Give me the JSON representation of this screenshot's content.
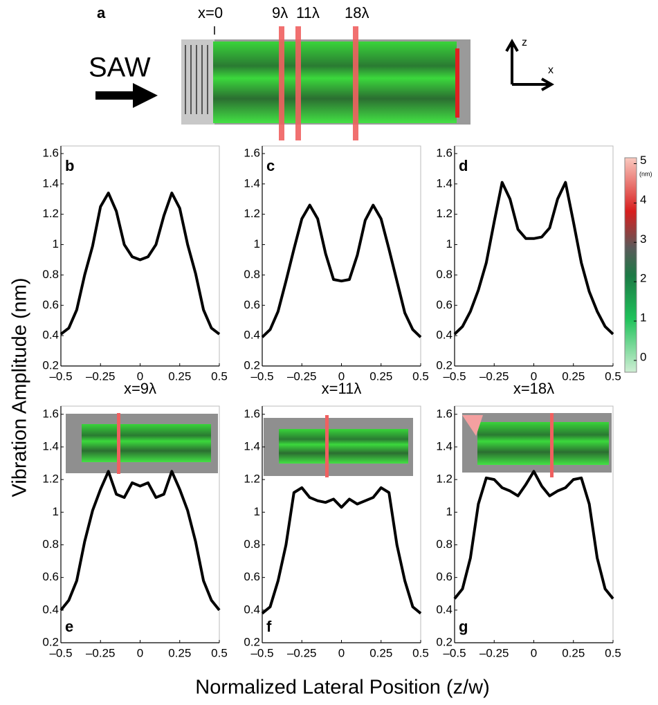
{
  "panel_a": {
    "label": "a",
    "position_label": "x=0",
    "markers": [
      "9λ",
      "11λ",
      "18λ"
    ],
    "arrow_label": "SAW",
    "axis_labels": [
      "z",
      "x"
    ]
  },
  "colorbar": {
    "ylim": [
      -0.3,
      5.15
    ],
    "yticks": [
      0,
      1,
      2,
      3,
      4,
      5
    ],
    "unit": "(nm)"
  },
  "figure": {
    "ylabel": "Vibration Amplitude (nm)",
    "xlabel": "Normalized Lateral Position (z/w)"
  },
  "chart_data": [
    {
      "type": "line",
      "label": "b",
      "color": "#000000",
      "x": [
        -0.5,
        -0.45,
        -0.4,
        -0.35,
        -0.3,
        -0.25,
        -0.2,
        -0.15,
        -0.1,
        -0.05,
        0,
        0.05,
        0.1,
        0.15,
        0.2,
        0.25,
        0.3,
        0.35,
        0.4,
        0.45,
        0.5
      ],
      "values": [
        0.41,
        0.45,
        0.57,
        0.8,
        0.99,
        1.25,
        1.34,
        1.22,
        1.0,
        0.92,
        0.9,
        0.92,
        1.0,
        1.19,
        1.34,
        1.24,
        1.0,
        0.81,
        0.57,
        0.45,
        0.41
      ],
      "xlim": [
        -0.5,
        0.5
      ],
      "ylim": [
        0.2,
        1.65
      ],
      "xticks": [
        {
          "value": -0.5,
          "label": "–0.5"
        },
        {
          "value": -0.25,
          "label": "–0.25"
        },
        0,
        0.25,
        0.5
      ],
      "yticks": [
        0.2,
        0.4,
        0.6,
        0.8,
        1,
        1.2,
        1.4,
        1.6
      ]
    },
    {
      "type": "line",
      "label": "c",
      "color": "#000000",
      "x": [
        -0.5,
        -0.45,
        -0.4,
        -0.35,
        -0.3,
        -0.25,
        -0.2,
        -0.15,
        -0.1,
        -0.05,
        0,
        0.05,
        0.1,
        0.15,
        0.2,
        0.25,
        0.3,
        0.35,
        0.4,
        0.45,
        0.5
      ],
      "values": [
        0.39,
        0.44,
        0.56,
        0.76,
        0.97,
        1.17,
        1.26,
        1.17,
        0.94,
        0.77,
        0.76,
        0.77,
        0.93,
        1.16,
        1.26,
        1.17,
        0.97,
        0.76,
        0.55,
        0.44,
        0.39
      ],
      "xlim": [
        -0.5,
        0.5
      ],
      "ylim": [
        0.2,
        1.65
      ],
      "xticks": [
        {
          "value": -0.5,
          "label": "–0.5"
        },
        {
          "value": -0.25,
          "label": "–0.25"
        },
        0,
        0.25,
        0.5
      ],
      "yticks": [
        0.2,
        0.4,
        0.6,
        0.8,
        1,
        1.2,
        1.4,
        1.6
      ]
    },
    {
      "type": "line",
      "label": "d",
      "color": "#000000",
      "x": [
        -0.5,
        -0.45,
        -0.4,
        -0.35,
        -0.3,
        -0.25,
        -0.2,
        -0.15,
        -0.1,
        -0.05,
        0,
        0.05,
        0.1,
        0.15,
        0.2,
        0.25,
        0.3,
        0.35,
        0.4,
        0.45,
        0.5
      ],
      "values": [
        0.41,
        0.46,
        0.56,
        0.7,
        0.88,
        1.15,
        1.41,
        1.3,
        1.1,
        1.04,
        1.04,
        1.05,
        1.11,
        1.3,
        1.41,
        1.15,
        0.88,
        0.69,
        0.56,
        0.46,
        0.41
      ],
      "xlim": [
        -0.5,
        0.5
      ],
      "ylim": [
        0.2,
        1.65
      ],
      "xticks": [
        {
          "value": -0.5,
          "label": "–0.5"
        },
        {
          "value": -0.25,
          "label": "–0.25"
        },
        0,
        0.25,
        0.5
      ],
      "yticks": [
        0.2,
        0.4,
        0.6,
        0.8,
        1,
        1.2,
        1.4,
        1.6
      ]
    },
    {
      "type": "line",
      "label": "e",
      "title": "x=9λ",
      "color": "#000000",
      "x": [
        -0.5,
        -0.45,
        -0.4,
        -0.35,
        -0.3,
        -0.25,
        -0.2,
        -0.15,
        -0.1,
        -0.05,
        0,
        0.05,
        0.1,
        0.15,
        0.2,
        0.25,
        0.3,
        0.35,
        0.4,
        0.45,
        0.5
      ],
      "values": [
        0.4,
        0.46,
        0.58,
        0.82,
        1.01,
        1.14,
        1.25,
        1.11,
        1.09,
        1.18,
        1.16,
        1.18,
        1.09,
        1.11,
        1.25,
        1.14,
        1.01,
        0.82,
        0.58,
        0.46,
        0.4
      ],
      "xlim": [
        -0.5,
        0.5
      ],
      "ylim": [
        0.2,
        1.65
      ],
      "xticks": [
        {
          "value": -0.5,
          "label": "–0.5"
        },
        {
          "value": -0.25,
          "label": "–0.25"
        },
        0,
        0.25,
        0.5
      ],
      "yticks": [
        0.2,
        0.4,
        0.6,
        0.8,
        1,
        1.2,
        1.4,
        1.6
      ]
    },
    {
      "type": "line",
      "label": "f",
      "title": "x=11λ",
      "color": "#000000",
      "x": [
        -0.5,
        -0.45,
        -0.4,
        -0.35,
        -0.3,
        -0.25,
        -0.2,
        -0.15,
        -0.1,
        -0.05,
        0,
        0.05,
        0.1,
        0.15,
        0.2,
        0.25,
        0.3,
        0.35,
        0.4,
        0.45,
        0.5
      ],
      "values": [
        0.38,
        0.42,
        0.58,
        0.8,
        1.12,
        1.15,
        1.09,
        1.07,
        1.06,
        1.08,
        1.03,
        1.08,
        1.05,
        1.07,
        1.09,
        1.15,
        1.12,
        0.8,
        0.58,
        0.42,
        0.38
      ],
      "xlim": [
        -0.5,
        0.5
      ],
      "ylim": [
        0.2,
        1.65
      ],
      "xticks": [
        {
          "value": -0.5,
          "label": "–0.5"
        },
        {
          "value": -0.25,
          "label": "–0.25"
        },
        0,
        0.25,
        0.5
      ],
      "yticks": [
        0.2,
        0.4,
        0.6,
        0.8,
        1,
        1.2,
        1.4,
        1.6
      ]
    },
    {
      "type": "line",
      "label": "g",
      "title": "x=18λ",
      "color": "#000000",
      "x": [
        -0.5,
        -0.45,
        -0.4,
        -0.35,
        -0.3,
        -0.25,
        -0.2,
        -0.15,
        -0.1,
        -0.05,
        0,
        0.05,
        0.1,
        0.15,
        0.2,
        0.25,
        0.3,
        0.35,
        0.4,
        0.45,
        0.5
      ],
      "values": [
        0.47,
        0.53,
        0.72,
        1.05,
        1.21,
        1.2,
        1.15,
        1.13,
        1.1,
        1.17,
        1.25,
        1.16,
        1.1,
        1.13,
        1.15,
        1.2,
        1.21,
        1.05,
        0.72,
        0.53,
        0.47
      ],
      "xlim": [
        -0.5,
        0.5
      ],
      "ylim": [
        0.2,
        1.65
      ],
      "xticks": [
        {
          "value": -0.5,
          "label": "–0.5"
        },
        {
          "value": -0.25,
          "label": "–0.25"
        },
        0,
        0.25,
        0.5
      ],
      "yticks": [
        0.2,
        0.4,
        0.6,
        0.8,
        1,
        1.2,
        1.4,
        1.6
      ]
    }
  ]
}
